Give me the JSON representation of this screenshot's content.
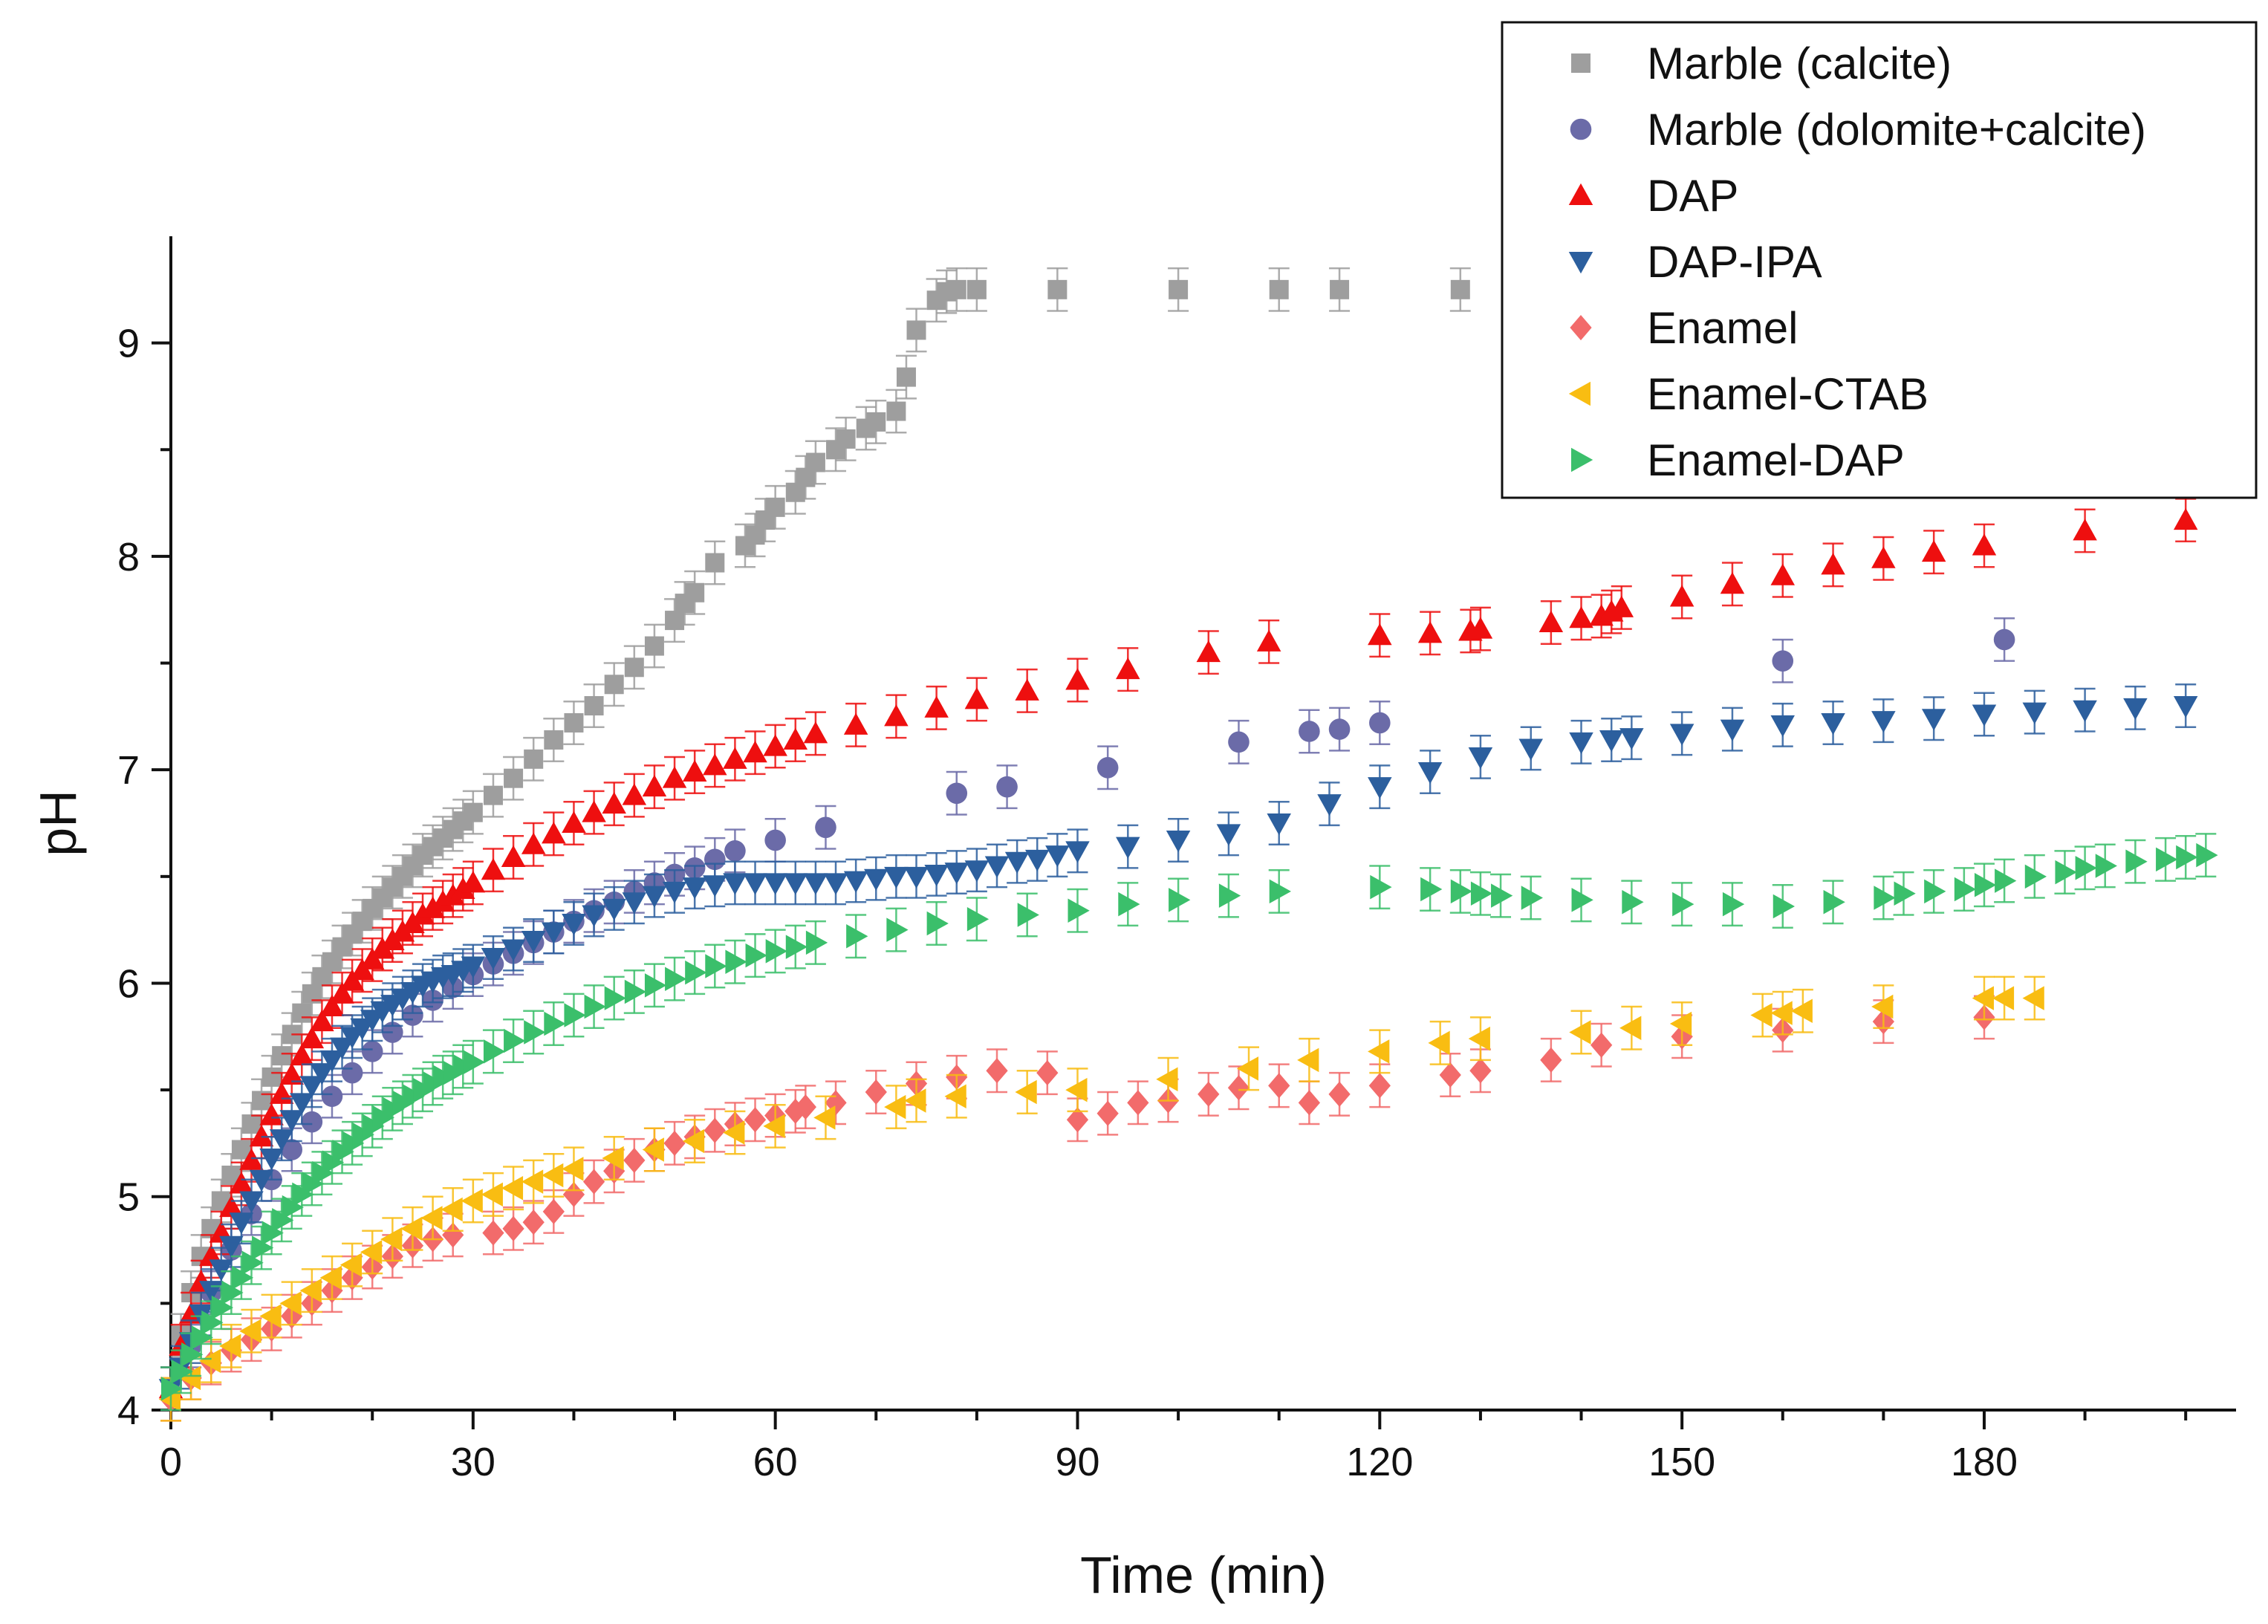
{
  "chart_data": {
    "type": "scatter",
    "title": "",
    "xlabel": "Time (min)",
    "ylabel": "pH",
    "xlim": [
      0,
      205
    ],
    "ylim": [
      4,
      9.5
    ],
    "x_ticks": [
      0,
      30,
      60,
      90,
      120,
      150,
      180
    ],
    "x_tick_labels": [
      "0",
      "30",
      "60",
      "90",
      "120",
      "150",
      "180"
    ],
    "y_ticks": [
      4,
      5,
      6,
      7,
      8,
      9
    ],
    "y_tick_labels": [
      "4",
      "5",
      "6",
      "7",
      "8",
      "9"
    ],
    "grid": false,
    "legend_position": "top-right",
    "series": [
      {
        "name": "Marble (calcite)",
        "marker": "square",
        "color": "#9e9e9e",
        "error": 0.1,
        "x": [
          0,
          1,
          2,
          3,
          4,
          5,
          6,
          7,
          8,
          9,
          10,
          11,
          12,
          13,
          14,
          15,
          16,
          17,
          18,
          19,
          20,
          21,
          22,
          23,
          24,
          25,
          26,
          27,
          28,
          29,
          30,
          32,
          34,
          36,
          38,
          40,
          42,
          44,
          46,
          48,
          50,
          51,
          52,
          54,
          57,
          58,
          59,
          60,
          62,
          63,
          64,
          66,
          67,
          69,
          70,
          72,
          73,
          74,
          76,
          77,
          78,
          80,
          88,
          100,
          110,
          116,
          128
        ],
        "y": [
          4.1,
          4.35,
          4.55,
          4.72,
          4.85,
          4.98,
          5.1,
          5.22,
          5.34,
          5.45,
          5.56,
          5.66,
          5.76,
          5.86,
          5.95,
          6.03,
          6.1,
          6.17,
          6.23,
          6.29,
          6.35,
          6.4,
          6.45,
          6.5,
          6.55,
          6.6,
          6.64,
          6.68,
          6.72,
          6.76,
          6.8,
          6.88,
          6.96,
          7.05,
          7.14,
          7.22,
          7.3,
          7.4,
          7.48,
          7.58,
          7.7,
          7.78,
          7.83,
          7.97,
          8.05,
          8.1,
          8.17,
          8.23,
          8.3,
          8.37,
          8.44,
          8.5,
          8.55,
          8.6,
          8.63,
          8.68,
          8.84,
          9.06,
          9.2,
          9.24,
          9.25,
          9.25,
          9.25,
          9.25,
          9.25,
          9.25,
          9.25
        ]
      },
      {
        "name": "Marble (dolomite+calcite)",
        "marker": "circle",
        "color": "#6b6ba8",
        "error": 0.1,
        "x": [
          2,
          4,
          6,
          8,
          10,
          12,
          14,
          16,
          18,
          20,
          22,
          24,
          26,
          28,
          30,
          32,
          34,
          36,
          38,
          40,
          42,
          44,
          46,
          48,
          50,
          52,
          54,
          56,
          60,
          65,
          78,
          83,
          93,
          106,
          113,
          116,
          120,
          160,
          182
        ],
        "y": [
          4.3,
          4.55,
          4.75,
          4.92,
          5.08,
          5.22,
          5.35,
          5.47,
          5.58,
          5.68,
          5.77,
          5.85,
          5.92,
          5.98,
          6.04,
          6.09,
          6.14,
          6.19,
          6.24,
          6.29,
          6.34,
          6.38,
          6.43,
          6.47,
          6.51,
          6.54,
          6.58,
          6.62,
          6.67,
          6.73,
          6.89,
          6.92,
          7.01,
          7.13,
          7.18,
          7.19,
          7.22,
          7.51,
          7.61
        ]
      },
      {
        "name": "DAP",
        "marker": "triangle-up",
        "color": "#ee0f0f",
        "error": 0.1,
        "x": [
          0,
          1,
          2,
          3,
          4,
          5,
          6,
          7,
          8,
          9,
          10,
          11,
          12,
          13,
          14,
          15,
          16,
          17,
          18,
          19,
          20,
          21,
          22,
          23,
          24,
          25,
          26,
          27,
          28,
          29,
          30,
          32,
          34,
          36,
          38,
          40,
          42,
          44,
          46,
          48,
          50,
          52,
          54,
          56,
          58,
          60,
          62,
          64,
          68,
          72,
          76,
          80,
          85,
          90,
          95,
          103,
          109,
          120,
          125,
          129,
          130,
          137,
          140,
          142,
          143,
          144,
          150,
          155,
          160,
          165,
          170,
          175,
          180,
          190,
          200
        ],
        "y": [
          4.1,
          4.3,
          4.45,
          4.6,
          4.72,
          4.83,
          4.95,
          5.06,
          5.17,
          5.28,
          5.38,
          5.48,
          5.57,
          5.66,
          5.74,
          5.82,
          5.89,
          5.95,
          6.01,
          6.06,
          6.11,
          6.16,
          6.2,
          6.24,
          6.28,
          6.32,
          6.35,
          6.38,
          6.41,
          6.44,
          6.47,
          6.53,
          6.59,
          6.65,
          6.7,
          6.75,
          6.8,
          6.84,
          6.88,
          6.92,
          6.96,
          6.99,
          7.02,
          7.05,
          7.08,
          7.11,
          7.14,
          7.17,
          7.21,
          7.25,
          7.29,
          7.33,
          7.37,
          7.42,
          7.47,
          7.55,
          7.6,
          7.63,
          7.64,
          7.65,
          7.66,
          7.69,
          7.71,
          7.72,
          7.74,
          7.76,
          7.81,
          7.87,
          7.91,
          7.96,
          7.99,
          8.02,
          8.05,
          8.12,
          8.17
        ]
      },
      {
        "name": "DAP-IPA",
        "marker": "triangle-down",
        "color": "#2c5f9e",
        "error": 0.1,
        "x": [
          0,
          1,
          2,
          3,
          4,
          5,
          6,
          7,
          8,
          9,
          10,
          11,
          12,
          13,
          14,
          15,
          16,
          17,
          18,
          19,
          20,
          21,
          22,
          23,
          24,
          25,
          26,
          27,
          28,
          29,
          30,
          32,
          34,
          36,
          38,
          40,
          42,
          44,
          46,
          48,
          50,
          52,
          54,
          56,
          58,
          60,
          62,
          64,
          66,
          68,
          70,
          72,
          74,
          76,
          78,
          80,
          82,
          84,
          86,
          88,
          90,
          95,
          100,
          105,
          110,
          115,
          120,
          125,
          130,
          135,
          140,
          143,
          145,
          150,
          155,
          160,
          165,
          170,
          175,
          180,
          185,
          190,
          195,
          200
        ],
        "y": [
          4.1,
          4.2,
          4.32,
          4.45,
          4.56,
          4.66,
          4.77,
          4.88,
          4.98,
          5.08,
          5.18,
          5.27,
          5.36,
          5.44,
          5.52,
          5.58,
          5.64,
          5.7,
          5.75,
          5.79,
          5.83,
          5.87,
          5.9,
          5.93,
          5.96,
          5.99,
          6.01,
          6.03,
          6.04,
          6.06,
          6.08,
          6.12,
          6.16,
          6.2,
          6.24,
          6.28,
          6.32,
          6.35,
          6.38,
          6.41,
          6.43,
          6.45,
          6.46,
          6.47,
          6.47,
          6.47,
          6.47,
          6.47,
          6.47,
          6.48,
          6.49,
          6.5,
          6.5,
          6.51,
          6.52,
          6.53,
          6.55,
          6.57,
          6.58,
          6.6,
          6.62,
          6.64,
          6.67,
          6.7,
          6.75,
          6.84,
          6.92,
          6.99,
          7.06,
          7.1,
          7.13,
          7.14,
          7.15,
          7.17,
          7.19,
          7.21,
          7.22,
          7.23,
          7.24,
          7.26,
          7.27,
          7.28,
          7.29,
          7.3
        ]
      },
      {
        "name": "Enamel",
        "marker": "diamond",
        "color": "#f26b6b",
        "error": 0.1,
        "x": [
          0,
          2,
          4,
          6,
          8,
          10,
          12,
          14,
          16,
          18,
          20,
          22,
          24,
          26,
          28,
          32,
          34,
          36,
          38,
          40,
          42,
          44,
          46,
          48,
          50,
          52,
          54,
          56,
          58,
          60,
          62,
          63,
          66,
          70,
          74,
          78,
          82,
          87,
          90,
          93,
          96,
          99,
          103,
          106,
          110,
          113,
          116,
          120,
          127,
          130,
          137,
          142,
          150,
          160,
          170,
          180
        ],
        "y": [
          4.05,
          4.15,
          4.22,
          4.28,
          4.33,
          4.38,
          4.44,
          4.5,
          4.56,
          4.62,
          4.67,
          4.72,
          4.77,
          4.8,
          4.82,
          4.83,
          4.85,
          4.88,
          4.93,
          5.01,
          5.07,
          5.12,
          5.17,
          5.22,
          5.25,
          5.28,
          5.31,
          5.34,
          5.36,
          5.38,
          5.4,
          5.42,
          5.44,
          5.49,
          5.53,
          5.56,
          5.59,
          5.58,
          5.36,
          5.39,
          5.44,
          5.45,
          5.48,
          5.51,
          5.52,
          5.44,
          5.48,
          5.52,
          5.57,
          5.59,
          5.64,
          5.71,
          5.75,
          5.78,
          5.82,
          5.84
        ]
      },
      {
        "name": "Enamel-CTAB",
        "marker": "triangle-left",
        "color": "#f9bd12",
        "error": 0.1,
        "x": [
          0,
          2,
          4,
          6,
          8,
          10,
          12,
          14,
          16,
          18,
          20,
          22,
          24,
          26,
          28,
          30,
          32,
          34,
          36,
          38,
          40,
          44,
          48,
          52,
          56,
          60,
          65,
          72,
          74,
          78,
          85,
          90,
          99,
          107,
          113,
          120,
          126,
          130,
          140,
          145,
          150,
          158,
          160,
          162,
          170,
          180,
          182,
          185
        ],
        "y": [
          4.05,
          4.15,
          4.23,
          4.3,
          4.37,
          4.44,
          4.5,
          4.56,
          4.62,
          4.68,
          4.74,
          4.8,
          4.85,
          4.9,
          4.94,
          4.98,
          5.01,
          5.04,
          5.07,
          5.1,
          5.13,
          5.18,
          5.22,
          5.26,
          5.3,
          5.33,
          5.37,
          5.42,
          5.45,
          5.47,
          5.49,
          5.5,
          5.55,
          5.6,
          5.64,
          5.68,
          5.72,
          5.74,
          5.77,
          5.79,
          5.81,
          5.85,
          5.86,
          5.87,
          5.89,
          5.93,
          5.93,
          5.93
        ]
      },
      {
        "name": "Enamel-DAP",
        "marker": "triangle-right",
        "color": "#3bbf6b",
        "error": 0.1,
        "x": [
          0,
          1,
          2,
          3,
          4,
          5,
          6,
          7,
          8,
          9,
          10,
          11,
          12,
          13,
          14,
          15,
          16,
          17,
          18,
          19,
          20,
          21,
          22,
          23,
          24,
          25,
          26,
          27,
          28,
          29,
          30,
          32,
          34,
          36,
          38,
          40,
          42,
          44,
          46,
          48,
          50,
          52,
          54,
          56,
          58,
          60,
          62,
          64,
          68,
          72,
          76,
          80,
          85,
          90,
          95,
          100,
          105,
          110,
          120,
          125,
          128,
          130,
          132,
          135,
          140,
          145,
          150,
          155,
          160,
          165,
          170,
          172,
          175,
          178,
          180,
          182,
          185,
          188,
          190,
          192,
          195,
          198,
          200,
          202
        ],
        "y": [
          4.1,
          4.18,
          4.26,
          4.34,
          4.41,
          4.48,
          4.55,
          4.62,
          4.69,
          4.76,
          4.83,
          4.89,
          4.95,
          5.01,
          5.06,
          5.11,
          5.16,
          5.21,
          5.25,
          5.29,
          5.33,
          5.37,
          5.41,
          5.44,
          5.47,
          5.5,
          5.53,
          5.56,
          5.58,
          5.61,
          5.63,
          5.68,
          5.73,
          5.77,
          5.81,
          5.85,
          5.89,
          5.93,
          5.96,
          5.99,
          6.02,
          6.05,
          6.08,
          6.1,
          6.13,
          6.15,
          6.17,
          6.19,
          6.22,
          6.25,
          6.28,
          6.3,
          6.32,
          6.34,
          6.37,
          6.39,
          6.41,
          6.43,
          6.45,
          6.44,
          6.43,
          6.42,
          6.41,
          6.4,
          6.39,
          6.38,
          6.37,
          6.37,
          6.36,
          6.38,
          6.4,
          6.42,
          6.43,
          6.44,
          6.46,
          6.48,
          6.5,
          6.52,
          6.54,
          6.55,
          6.57,
          6.58,
          6.59,
          6.6
        ]
      }
    ]
  }
}
